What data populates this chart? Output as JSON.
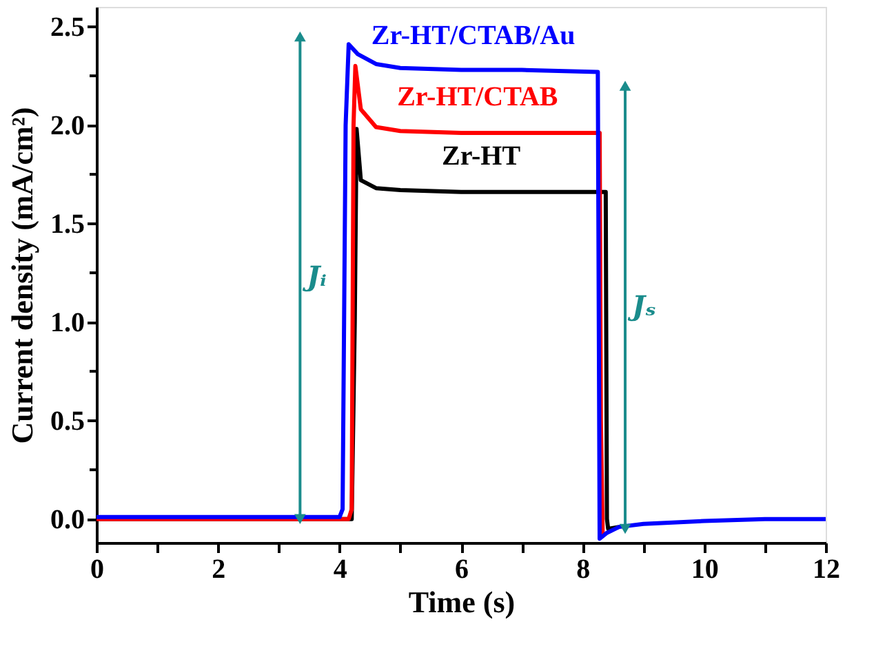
{
  "chart_data": {
    "type": "line",
    "xlabel": "Time (s)",
    "ylabel": "Current density (mA/cm²)",
    "xlim": [
      0,
      12
    ],
    "ylim": [
      -0.12,
      2.6
    ],
    "xticks": [
      0,
      {
        "value": 1,
        "label": null
      },
      2,
      {
        "value": 3,
        "label": null
      },
      4,
      {
        "value": 5,
        "label": null
      },
      6,
      {
        "value": 7,
        "label": null
      },
      8,
      {
        "value": 9,
        "label": null
      },
      10,
      {
        "value": 11,
        "label": null
      },
      12
    ],
    "yticks": [
      {
        "value": 0,
        "label": "0.0"
      },
      {
        "value": 0.25,
        "label": null
      },
      {
        "value": 0.5,
        "label": "0.5"
      },
      {
        "value": 0.75,
        "label": null
      },
      {
        "value": 1,
        "label": "1.0"
      },
      {
        "value": 1.25,
        "label": null
      },
      {
        "value": 1.5,
        "label": "1.5"
      },
      {
        "value": 1.75,
        "label": null
      },
      {
        "value": 2,
        "label": "2.0"
      },
      {
        "value": 2.25,
        "label": null
      },
      {
        "value": 2.5,
        "label": "2.5"
      }
    ],
    "grid": false,
    "legend": false,
    "marker": "none",
    "line_style": "solid",
    "series": [
      {
        "name": "Zr-HT",
        "color": "#000000",
        "x": [
          0,
          4.2,
          4.25,
          4.28,
          4.35,
          4.6,
          5,
          6,
          7,
          8.38,
          8.4,
          8.42,
          8.6
        ],
        "values": [
          0,
          0,
          1.0,
          1.98,
          1.72,
          1.68,
          1.67,
          1.66,
          1.66,
          1.66,
          0.0,
          -0.05,
          -0.04
        ]
      },
      {
        "name": "Zr-HT/CTAB",
        "color": "#ff0000",
        "x": [
          0,
          4.15,
          4.2,
          4.23,
          4.26,
          4.35,
          4.6,
          5,
          6,
          7,
          8.28,
          8.3,
          8.33
        ],
        "values": [
          0,
          0,
          0.05,
          2.0,
          2.3,
          2.08,
          1.99,
          1.97,
          1.96,
          1.96,
          1.96,
          0.5,
          -0.08
        ]
      },
      {
        "name": "Zr-HT/CTAB/Au",
        "color": "#0000ff",
        "x": [
          0,
          4.0,
          4.05,
          4.1,
          4.15,
          4.3,
          4.6,
          5,
          6,
          7,
          8.25,
          8.28,
          8.4,
          8.6,
          9,
          10,
          11,
          12
        ],
        "values": [
          0.01,
          0.01,
          0.05,
          2.0,
          2.41,
          2.36,
          2.31,
          2.29,
          2.28,
          2.28,
          2.27,
          -0.1,
          -0.07,
          -0.04,
          -0.025,
          -0.01,
          0,
          0
        ]
      },
      {
        "type": "line",
        "color": "#1a8c8c",
        "marker": "triangle",
        "x": [
          3.35,
          3.35
        ],
        "values": [
          0,
          2.45
        ]
      },
      {
        "type": "line",
        "color": "#1a8c8c",
        "marker": "triangle",
        "x": [
          8.7,
          8.7
        ],
        "values": [
          2.2,
          -0.05
        ]
      }
    ],
    "annotations": [
      "Jᵢ",
      "Jₛ"
    ]
  }
}
